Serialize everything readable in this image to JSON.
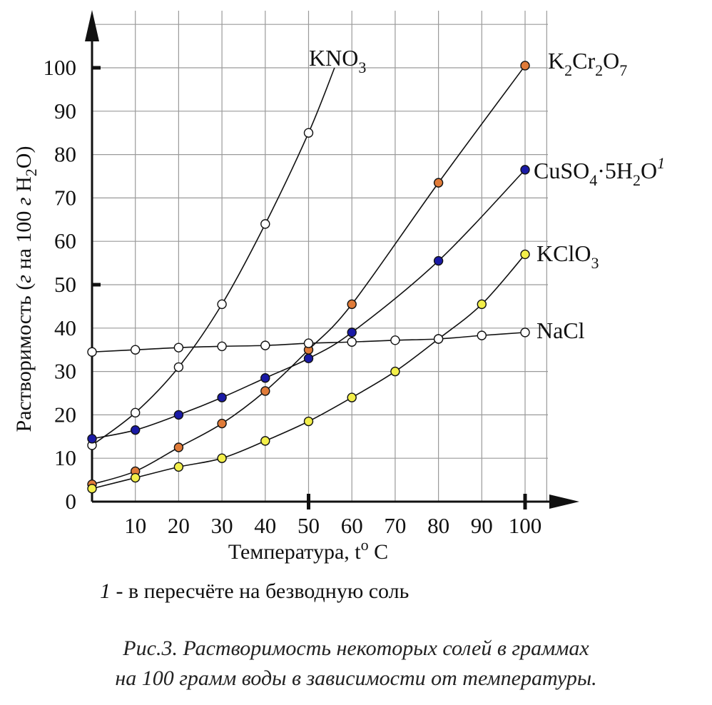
{
  "chart_data": {
    "type": "line",
    "xlabel": "Температура, t",
    "xlabel_sup": "o",
    "xlabel_unit": " C",
    "ylabel": "Растворимость (",
    "ylabel_italic": "г",
    "ylabel_rest": " на 100 ",
    "ylabel_italic2": "г",
    "ylabel_end": " H",
    "ylabel_sub": "2",
    "ylabel_close": "O)",
    "x_ticks": [
      "10",
      "20",
      "30",
      "40",
      "50",
      "60",
      "70",
      "80",
      "90",
      "100"
    ],
    "y_ticks": [
      "0",
      "10",
      "20",
      "30",
      "40",
      "50",
      "60",
      "70",
      "80",
      "90",
      "100"
    ],
    "xlim": [
      0,
      100
    ],
    "ylim": [
      0,
      100
    ],
    "grid": true,
    "series": [
      {
        "name": "KNO3",
        "label_parts": [
          [
            "KNO",
            ""
          ],
          [
            "3",
            "sub"
          ]
        ],
        "marker_color": "#ffffff",
        "x": [
          0,
          10,
          20,
          30,
          40,
          50
        ],
        "y": [
          13,
          20.5,
          31,
          45.5,
          64,
          85
        ],
        "line_extends_to": [
          56,
          100
        ]
      },
      {
        "name": "K2Cr2O7",
        "label_parts": [
          [
            "K",
            ""
          ],
          [
            "2",
            "sub"
          ],
          [
            "Cr",
            ""
          ],
          [
            "2",
            "sub"
          ],
          [
            "O",
            ""
          ],
          [
            "7",
            "sub"
          ]
        ],
        "marker_color": "#e07b39",
        "x": [
          0,
          10,
          20,
          30,
          40,
          50,
          60,
          80,
          100
        ],
        "y": [
          4,
          7,
          12.5,
          18,
          25.5,
          35,
          45.5,
          73.5,
          100.5
        ]
      },
      {
        "name": "CuSO4·5H2O",
        "label_parts": [
          [
            "CuSO",
            ""
          ],
          [
            "4",
            "sub"
          ],
          [
            "·5H",
            ""
          ],
          [
            "2",
            "sub"
          ],
          [
            "O",
            ""
          ],
          [
            "1",
            "sup"
          ]
        ],
        "marker_color": "#1a1aa6",
        "x": [
          0,
          10,
          20,
          30,
          40,
          50,
          60,
          80,
          100
        ],
        "y": [
          14.5,
          16.5,
          20,
          24,
          28.5,
          33,
          39,
          55.5,
          76.5
        ]
      },
      {
        "name": "KClO3",
        "label_parts": [
          [
            "KClO",
            ""
          ],
          [
            "3",
            "sub"
          ]
        ],
        "marker_color": "#f3ef4a",
        "x": [
          0,
          10,
          20,
          30,
          40,
          50,
          60,
          70,
          80,
          90,
          100
        ],
        "y": [
          3,
          5.5,
          8,
          10,
          14,
          18.5,
          24,
          30,
          37.5,
          45.5,
          57
        ]
      },
      {
        "name": "NaCl",
        "label_parts": [
          [
            "NaCl",
            ""
          ]
        ],
        "marker_color": "#ffffff",
        "x": [
          0,
          10,
          20,
          30,
          40,
          50,
          60,
          70,
          80,
          90,
          100
        ],
        "y": [
          34.5,
          35,
          35.5,
          35.8,
          36,
          36.5,
          36.8,
          37.2,
          37.5,
          38.3,
          39
        ]
      }
    ]
  },
  "footnote": {
    "mark": "1",
    "text": " - в пересчёте на безводную соль"
  },
  "caption": {
    "line1": "Рис.3. Растворимость некоторых солей в граммах",
    "line2": "на 100 грамм воды в зависимости от температуры."
  }
}
